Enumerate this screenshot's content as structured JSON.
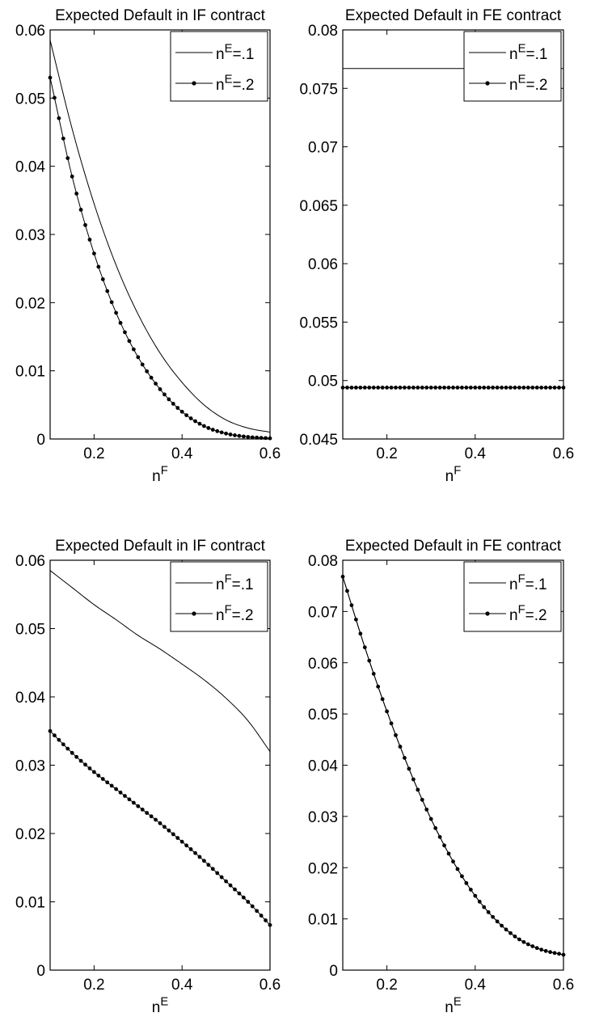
{
  "chart_data": [
    {
      "type": "line",
      "title": "Expected Default in IF contract",
      "xlabel": "n",
      "xlabel_sup": "F",
      "ylabel": "",
      "xlim": [
        0.1,
        0.6
      ],
      "ylim": [
        0,
        0.06
      ],
      "xticks": [
        0.2,
        0.4,
        0.6
      ],
      "xtick_labels": [
        "0.2",
        "0.4",
        "0.6"
      ],
      "yticks": [
        0,
        0.01,
        0.02,
        0.03,
        0.04,
        0.05,
        0.06
      ],
      "ytick_labels": [
        "0",
        "0.01",
        "0.02",
        "0.03",
        "0.04",
        "0.05",
        "0.06"
      ],
      "grid": false,
      "legend_position": "top-right",
      "x": [
        0.1,
        0.15,
        0.2,
        0.25,
        0.3,
        0.35,
        0.4,
        0.45,
        0.5,
        0.55,
        0.6
      ],
      "series": [
        {
          "name": "n^E=.1",
          "legend_base": "n",
          "legend_sup": "E",
          "legend_tail": "=.1",
          "marker": "none",
          "values": [
            0.0585,
            0.0455,
            0.0345,
            0.0255,
            0.0183,
            0.0126,
            0.0083,
            0.005,
            0.0028,
            0.0016,
            0.001
          ]
        },
        {
          "name": "n^E=.2",
          "legend_base": "n",
          "legend_sup": "E",
          "legend_tail": "=.2",
          "marker": "dot",
          "values": [
            0.053,
            0.0385,
            0.0272,
            0.0185,
            0.012,
            0.0073,
            0.004,
            0.0019,
            0.0008,
            0.0003,
            0.0001
          ]
        }
      ]
    },
    {
      "type": "line",
      "title": "Expected Default in FE contract",
      "xlabel": "n",
      "xlabel_sup": "F",
      "ylabel": "",
      "xlim": [
        0.1,
        0.6
      ],
      "ylim": [
        0.045,
        0.08
      ],
      "xticks": [
        0.2,
        0.4,
        0.6
      ],
      "xtick_labels": [
        "0.2",
        "0.4",
        "0.6"
      ],
      "yticks": [
        0.045,
        0.05,
        0.055,
        0.06,
        0.065,
        0.07,
        0.075,
        0.08
      ],
      "ytick_labels": [
        "0.045",
        "0.05",
        "0.055",
        "0.06",
        "0.065",
        "0.07",
        "0.075",
        "0.08"
      ],
      "grid": false,
      "legend_position": "top-right",
      "x": [
        0.1,
        0.15,
        0.2,
        0.25,
        0.3,
        0.35,
        0.4,
        0.45,
        0.5,
        0.55,
        0.6
      ],
      "series": [
        {
          "name": "n^E=.1",
          "legend_base": "n",
          "legend_sup": "E",
          "legend_tail": "=.1",
          "marker": "none",
          "values": [
            0.0767,
            0.0767,
            0.0767,
            0.0767,
            0.0767,
            0.0767,
            0.0767,
            0.0767,
            0.0767,
            0.0767,
            0.0767
          ]
        },
        {
          "name": "n^E=.2",
          "legend_base": "n",
          "legend_sup": "E",
          "legend_tail": "=.2",
          "marker": "dot",
          "values": [
            0.0494,
            0.0494,
            0.0494,
            0.0494,
            0.0494,
            0.0494,
            0.0494,
            0.0494,
            0.0494,
            0.0494,
            0.0494
          ]
        }
      ]
    },
    {
      "type": "line",
      "title": "Expected Default in IF contract",
      "xlabel": "n",
      "xlabel_sup": "E",
      "ylabel": "",
      "xlim": [
        0.1,
        0.6
      ],
      "ylim": [
        0,
        0.06
      ],
      "xticks": [
        0.2,
        0.4,
        0.6
      ],
      "xtick_labels": [
        "0.2",
        "0.4",
        "0.6"
      ],
      "yticks": [
        0,
        0.01,
        0.02,
        0.03,
        0.04,
        0.05,
        0.06
      ],
      "ytick_labels": [
        "0",
        "0.01",
        "0.02",
        "0.03",
        "0.04",
        "0.05",
        "0.06"
      ],
      "grid": false,
      "legend_position": "top-right",
      "x": [
        0.1,
        0.15,
        0.2,
        0.25,
        0.3,
        0.35,
        0.4,
        0.45,
        0.5,
        0.55,
        0.6
      ],
      "series": [
        {
          "name": "n^F=.1",
          "legend_base": "n",
          "legend_sup": "F",
          "legend_tail": "=.1",
          "marker": "none",
          "values": [
            0.0585,
            0.056,
            0.0535,
            0.0513,
            0.049,
            0.047,
            0.0448,
            0.0425,
            0.0398,
            0.0365,
            0.032
          ]
        },
        {
          "name": "n^F=.2",
          "legend_base": "n",
          "legend_sup": "F",
          "legend_tail": "=.2",
          "marker": "dot",
          "values": [
            0.035,
            0.0318,
            0.029,
            0.0265,
            0.024,
            0.0215,
            0.0188,
            0.016,
            0.013,
            0.01,
            0.0066
          ]
        }
      ]
    },
    {
      "type": "line",
      "title": "Expected Default in FE contract",
      "xlabel": "n",
      "xlabel_sup": "E",
      "ylabel": "",
      "xlim": [
        0.1,
        0.6
      ],
      "ylim": [
        0,
        0.08
      ],
      "xticks": [
        0.2,
        0.4,
        0.6
      ],
      "xtick_labels": [
        "0.2",
        "0.4",
        "0.6"
      ],
      "yticks": [
        0,
        0.01,
        0.02,
        0.03,
        0.04,
        0.05,
        0.06,
        0.07,
        0.08
      ],
      "ytick_labels": [
        "0",
        "0.01",
        "0.02",
        "0.03",
        "0.04",
        "0.05",
        "0.06",
        "0.07",
        "0.08"
      ],
      "grid": false,
      "legend_position": "top-right",
      "x": [
        0.1,
        0.15,
        0.2,
        0.25,
        0.3,
        0.35,
        0.4,
        0.45,
        0.5,
        0.55,
        0.6
      ],
      "series": [
        {
          "name": "n^F=.1",
          "legend_base": "n",
          "legend_sup": "F",
          "legend_tail": "=.1",
          "marker": "none",
          "values": [
            0.0768,
            0.063,
            0.0505,
            0.0393,
            0.0295,
            0.0212,
            0.0145,
            0.0095,
            0.006,
            0.004,
            0.003
          ]
        },
        {
          "name": "n^F=.2",
          "legend_base": "n",
          "legend_sup": "F",
          "legend_tail": "=.2",
          "marker": "dot",
          "values": [
            0.0768,
            0.063,
            0.0505,
            0.0393,
            0.0295,
            0.0212,
            0.0145,
            0.0095,
            0.006,
            0.004,
            0.003
          ]
        }
      ]
    }
  ]
}
